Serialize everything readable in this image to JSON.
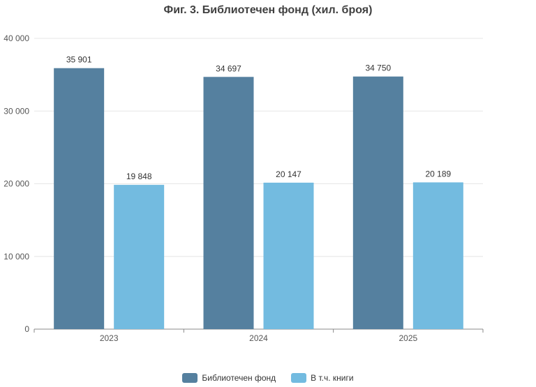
{
  "chart_data": {
    "type": "bar",
    "title": "Фиг. 3. Библиотечен фонд (хил. броя)",
    "xlabel": "",
    "ylabel": "",
    "categories": [
      "2023",
      "2024",
      "2025"
    ],
    "series": [
      {
        "name": "Библиотечен фонд",
        "color": "#55809f",
        "values": [
          35901,
          34697,
          34750
        ],
        "labels": [
          "35 901",
          "34 697",
          "34 750"
        ]
      },
      {
        "name": "В т.ч. книги",
        "color": "#73bbe0",
        "values": [
          19848,
          20147,
          20189
        ],
        "labels": [
          "19 848",
          "20 147",
          "20 189"
        ]
      }
    ],
    "ylim": [
      0,
      40000
    ],
    "yticks": [
      0,
      10000,
      20000,
      30000,
      40000
    ],
    "ytick_labels": [
      "0",
      "10 000",
      "20 000",
      "30 000",
      "40 000"
    ],
    "grid": true,
    "legend_position": "bottom-center"
  }
}
